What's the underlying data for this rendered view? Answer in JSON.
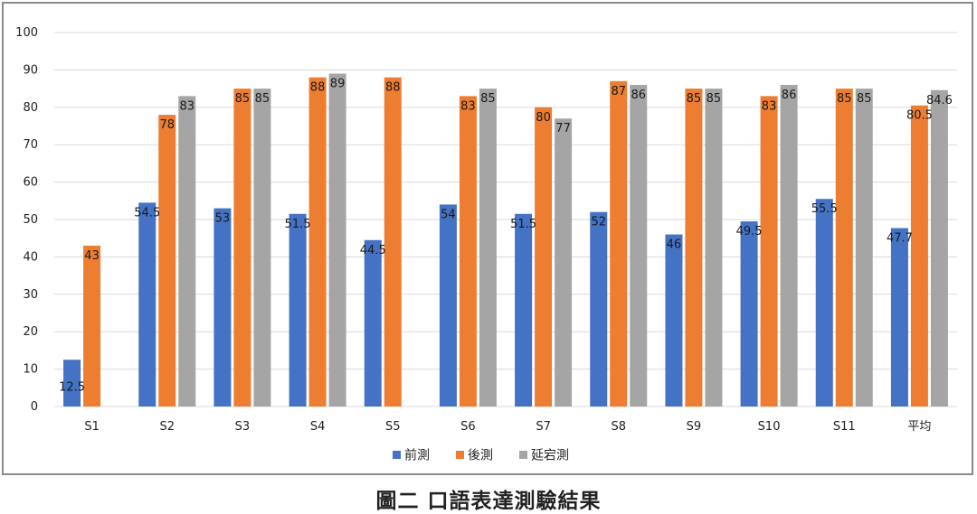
{
  "chart_data": {
    "type": "bar",
    "categories": [
      "S1",
      "S2",
      "S3",
      "S4",
      "S5",
      "S6",
      "S7",
      "S8",
      "S9",
      "S10",
      "S11",
      "平均"
    ],
    "series": [
      {
        "name": "前測",
        "color": "#4472c4",
        "values": [
          12.5,
          54.5,
          53,
          51.5,
          44.5,
          54,
          51.5,
          52,
          46,
          49.5,
          55.5,
          47.7
        ],
        "labels": [
          "12.5",
          "54.5",
          "53",
          "51.5",
          "44.5",
          "54",
          "51.5",
          "52",
          "46",
          "49.5",
          "55.5",
          "47.7"
        ]
      },
      {
        "name": "後測",
        "color": "#ed7d31",
        "values": [
          43,
          78,
          85,
          88,
          88,
          83,
          80,
          87,
          85,
          83,
          85,
          80.5
        ],
        "labels": [
          "43",
          "78",
          "85",
          "88",
          "88",
          "83",
          "80",
          "87",
          "85",
          "83",
          "85",
          "80.5"
        ]
      },
      {
        "name": "延宕測",
        "color": "#a5a5a5",
        "values": [
          null,
          83,
          85,
          89,
          null,
          85,
          77,
          86,
          85,
          86,
          85,
          84.6
        ],
        "labels": [
          null,
          "83",
          "85",
          "89",
          null,
          "85",
          "77",
          "86",
          "85",
          "86",
          "85",
          "84.6"
        ]
      }
    ],
    "yticks": [
      "0",
      "10",
      "20",
      "30",
      "40",
      "50",
      "60",
      "70",
      "80",
      "90",
      "100"
    ],
    "ylim": [
      0,
      100
    ],
    "grid": true,
    "legend_position": "bottom-center"
  },
  "caption": "圖二 口語表達測驗結果"
}
